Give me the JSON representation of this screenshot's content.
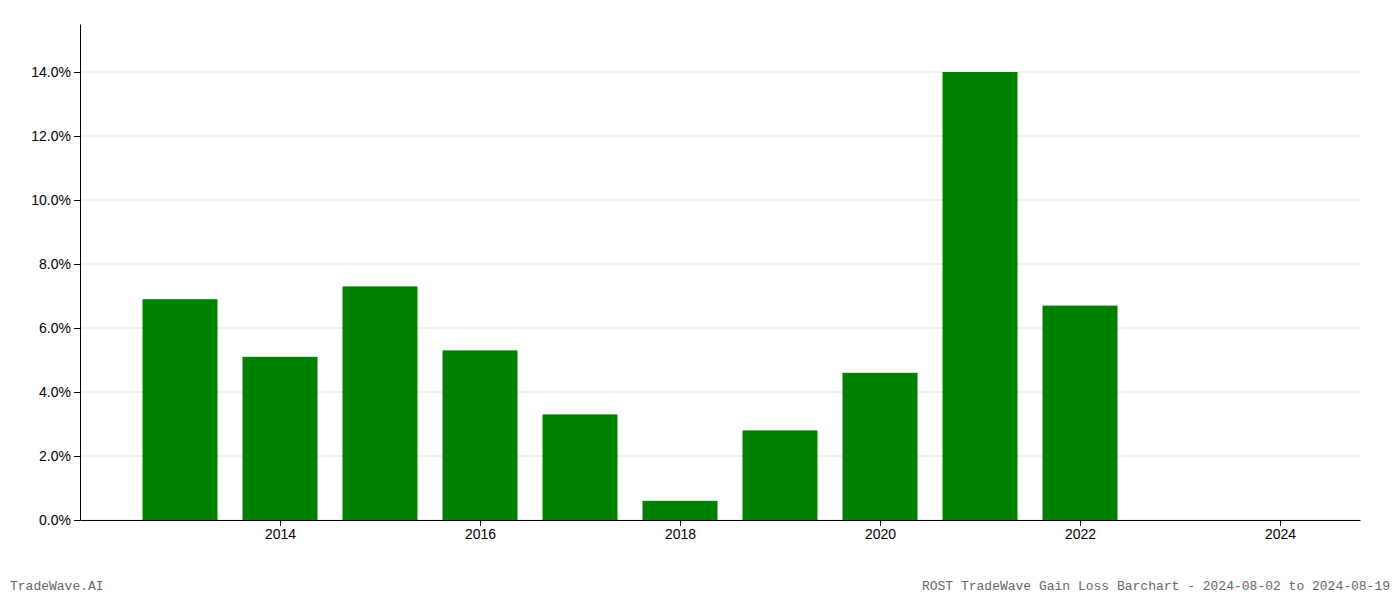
{
  "chart_data": {
    "type": "bar",
    "x": [
      2013,
      2014,
      2015,
      2016,
      2017,
      2018,
      2019,
      2020,
      2021,
      2022,
      2023
    ],
    "values": [
      0.069,
      0.051,
      0.073,
      0.053,
      0.033,
      0.006,
      0.028,
      0.046,
      0.14,
      0.067,
      0.0
    ],
    "color": "#008000",
    "xlim": [
      2012.0,
      2024.8
    ],
    "xticks": [
      2014,
      2016,
      2018,
      2020,
      2022,
      2024
    ],
    "ylim": [
      0,
      0.155
    ],
    "yticks": [
      {
        "value": 0.0,
        "label": "0.0%"
      },
      {
        "value": 0.02,
        "label": "2.0%"
      },
      {
        "value": 0.04,
        "label": "4.0%"
      },
      {
        "value": 0.06,
        "label": "6.0%"
      },
      {
        "value": 0.08,
        "label": "8.0%"
      },
      {
        "value": 0.1,
        "label": "10.0%"
      },
      {
        "value": 0.12,
        "label": "12.0%"
      },
      {
        "value": 0.14,
        "label": "14.0%"
      }
    ],
    "grid": true,
    "annotations": [
      "TradeWave.AI",
      "ROST TradeWave Gain Loss Barchart - 2024-08-02 to 2024-08-19"
    ]
  }
}
